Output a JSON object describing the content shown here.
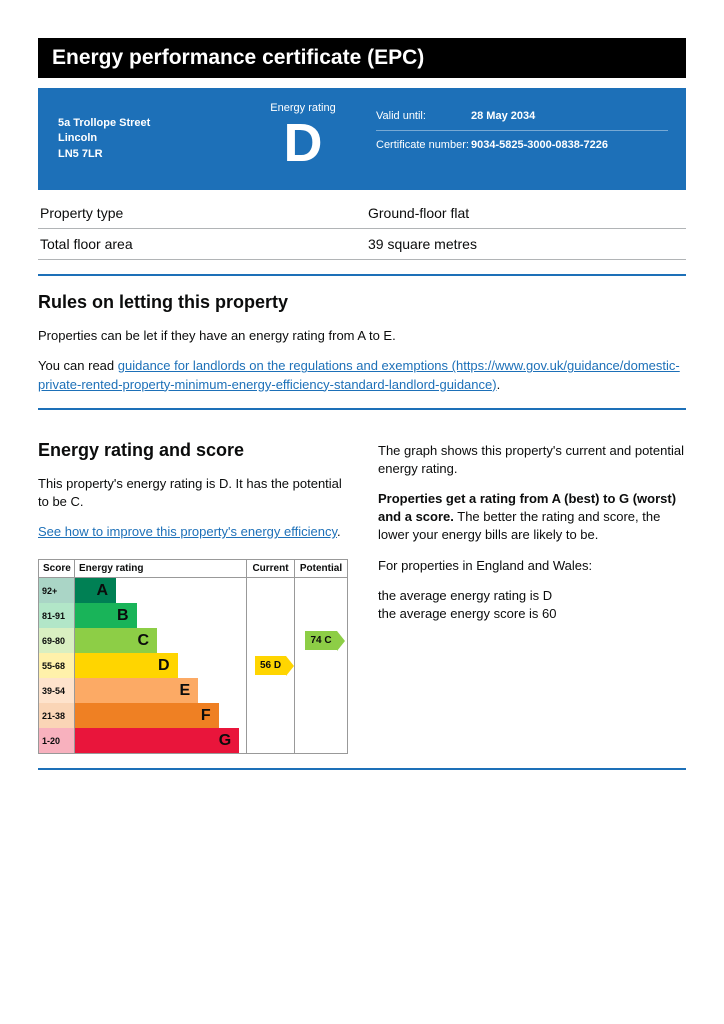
{
  "title": "Energy performance certificate (EPC)",
  "address": {
    "line1": "5a Trollope Street",
    "line2": "Lincoln",
    "postcode": "LN5 7LR"
  },
  "rating_box": {
    "label": "Energy rating",
    "letter": "D"
  },
  "meta": {
    "valid_label": "Valid until:",
    "valid_value": "28 May 2034",
    "cert_label": "Certificate number:",
    "cert_value": "9034-5825-3000-0838-7226"
  },
  "properties": [
    {
      "k": "Property type",
      "v": "Ground-floor flat"
    },
    {
      "k": "Total floor area",
      "v": "39 square metres"
    }
  ],
  "letting": {
    "heading": "Rules on letting this property",
    "p1": "Properties can be let if they have an energy rating from A to E.",
    "p2_prefix": "You can read ",
    "link_text": "guidance for landlords on the regulations and exemptions (https://www.gov.uk/guidance/domestic-private-rented-property-minimum-energy-efficiency-standard-landlord-guidance)",
    "p2_suffix": "."
  },
  "rating_section": {
    "heading": "Energy rating and score",
    "left_p1": "This property's energy rating is D. It has the potential to be C.",
    "left_link": "See how to improve this property's energy efficiency",
    "right_p1": "The graph shows this property's current and potential energy rating.",
    "right_p2_strong": "Properties get a rating from A (best) to G (worst) and a score.",
    "right_p2_rest": " The better the rating and score, the lower your energy bills are likely to be.",
    "right_p3": "For properties in England and Wales:",
    "right_p4a": "the average energy rating is D",
    "right_p4b": "the average energy score is 60"
  },
  "chart": {
    "headers": {
      "score": "Score",
      "rating": "Energy rating",
      "current": "Current",
      "potential": "Potential"
    },
    "bands": [
      {
        "label": "92+",
        "letter": "A",
        "color": "#008054",
        "width_pct": 24
      },
      {
        "label": "81-91",
        "letter": "B",
        "color": "#19b459",
        "width_pct": 36
      },
      {
        "label": "69-80",
        "letter": "C",
        "color": "#8dce46",
        "width_pct": 48
      },
      {
        "label": "55-68",
        "letter": "D",
        "color": "#ffd500",
        "width_pct": 60
      },
      {
        "label": "39-54",
        "letter": "E",
        "color": "#fcaa65",
        "width_pct": 72
      },
      {
        "label": "21-38",
        "letter": "F",
        "color": "#ef8023",
        "width_pct": 84
      },
      {
        "label": "1-20",
        "letter": "G",
        "color": "#e9153b",
        "width_pct": 96
      }
    ],
    "current": {
      "band_index": 3,
      "text": "56  D",
      "tag_class": "tag-d"
    },
    "potential": {
      "band_index": 2,
      "text": "74  C",
      "tag_class": "tag-c"
    }
  }
}
